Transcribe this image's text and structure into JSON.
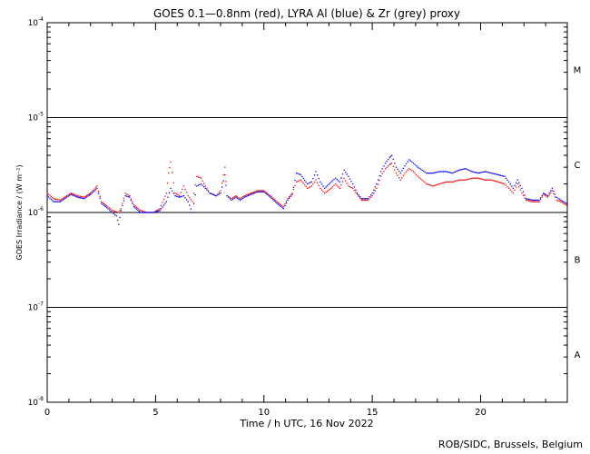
{
  "chart_data": {
    "type": "line",
    "title": "GOES 0.1—0.8nm (red), LYRA Al (blue) & Zr (grey) proxy",
    "xlabel": "Time / h UTC, 16 Nov 2022",
    "ylabel": "GOES Irradiance / (W m⁻²)",
    "xlim": [
      0,
      24
    ],
    "ylim": [
      1e-08,
      0.0001
    ],
    "y_scale": "log",
    "x_ticks": [
      0,
      5,
      10,
      15,
      20
    ],
    "y_ticks": [
      {
        "value": 1e-08,
        "base": "10",
        "exp": "-8"
      },
      {
        "value": 1e-07,
        "base": "10",
        "exp": "-7"
      },
      {
        "value": 1e-06,
        "base": "10",
        "exp": "-6"
      },
      {
        "value": 1e-05,
        "base": "10",
        "exp": "-5"
      },
      {
        "value": 0.0001,
        "base": "10",
        "exp": "-4"
      }
    ],
    "flare_class_lines": [
      1e-07,
      1e-06,
      1e-05
    ],
    "flare_classes": [
      {
        "label": "A",
        "y": 3.2e-08
      },
      {
        "label": "B",
        "y": 3.2e-07
      },
      {
        "label": "C",
        "y": 3.2e-06
      },
      {
        "label": "M",
        "y": 3.2e-05
      }
    ],
    "series": [
      {
        "color": "#ff0000",
        "x": [
          0,
          0.3,
          0.6,
          0.9,
          1.1,
          1.4,
          1.7,
          2.0,
          2.3,
          2.5,
          2.8,
          3.0,
          3.3,
          3.4,
          3.6,
          3.8,
          4.0,
          4.3,
          4.6,
          4.9,
          5.2,
          5.5,
          5.6,
          5.7,
          5.9,
          6.1,
          6.3,
          6.5,
          6.7,
          6.9,
          7.1,
          7.3,
          7.5,
          7.8,
          8.0,
          8.2,
          8.3,
          8.5,
          8.7,
          8.9,
          9.1,
          9.4,
          9.7,
          10.0,
          10.3,
          10.6,
          10.9,
          11.1,
          11.3,
          11.5,
          11.7,
          12.0,
          12.2,
          12.4,
          12.6,
          12.8,
          13.1,
          13.3,
          13.5,
          13.7,
          13.9,
          14.1,
          14.3,
          14.5,
          14.8,
          15.0,
          15.2,
          15.4,
          15.6,
          15.8,
          15.9,
          16.1,
          16.3,
          16.5,
          16.7,
          16.9,
          17.1,
          17.3,
          17.5,
          17.8,
          18.1,
          18.4,
          18.7,
          19.0,
          19.3,
          19.6,
          19.9,
          20.2,
          20.5,
          20.8,
          21.1,
          21.3,
          21.5,
          21.7,
          21.9,
          22.1,
          22.4,
          22.7,
          22.9,
          23.1,
          23.3,
          23.5,
          23.7,
          23.95
        ],
        "y": [
          1.6e-06,
          1.4e-06,
          1.35e-06,
          1.5e-06,
          1.6e-06,
          1.5e-06,
          1.45e-06,
          1.6e-06,
          1.9e-06,
          1.3e-06,
          1.15e-06,
          1.05e-06,
          1e-06,
          1.1e-06,
          1.6e-06,
          1.5e-06,
          1.2e-06,
          1.05e-06,
          1e-06,
          1e-06,
          1.1e-06,
          1.6e-06,
          2.6e-06,
          3.4e-06,
          1.6e-06,
          1.5e-06,
          1.9e-06,
          1.5e-06,
          1.3e-06,
          2.4e-06,
          2.3e-06,
          1.9e-06,
          1.6e-06,
          1.5e-06,
          1.7e-06,
          3e-06,
          1.5e-06,
          1.4e-06,
          1.5e-06,
          1.4e-06,
          1.5e-06,
          1.6e-06,
          1.7e-06,
          1.7e-06,
          1.5e-06,
          1.3e-06,
          1.15e-06,
          1.4e-06,
          1.6e-06,
          2.1e-06,
          2.2e-06,
          1.8e-06,
          1.9e-06,
          2.2e-06,
          1.8e-06,
          1.6e-06,
          1.8e-06,
          2e-06,
          1.8e-06,
          2.3e-06,
          1.9e-06,
          1.8e-06,
          1.55e-06,
          1.35e-06,
          1.35e-06,
          1.5e-06,
          1.8e-06,
          2.4e-06,
          2.9e-06,
          3.2e-06,
          3.3e-06,
          2.6e-06,
          2.2e-06,
          2.6e-06,
          2.9e-06,
          2.7e-06,
          2.4e-06,
          2.2e-06,
          2e-06,
          1.9e-06,
          2e-06,
          2.1e-06,
          2.1e-06,
          2.2e-06,
          2.2e-06,
          2.3e-06,
          2.3e-06,
          2.2e-06,
          2.2e-06,
          2.1e-06,
          2e-06,
          1.8e-06,
          1.6e-06,
          2e-06,
          1.6e-06,
          1.35e-06,
          1.3e-06,
          1.3e-06,
          1.55e-06,
          1.45e-06,
          1.7e-06,
          1.35e-06,
          1.3e-06,
          1.2e-06
        ]
      },
      {
        "color": "#0000ff",
        "x": [
          0,
          0.3,
          0.6,
          0.9,
          1.1,
          1.4,
          1.7,
          2.0,
          2.3,
          2.5,
          2.8,
          3.0,
          3.2,
          3.3,
          3.4,
          3.6,
          3.8,
          4.0,
          4.3,
          4.6,
          4.9,
          5.2,
          5.5,
          5.7,
          5.9,
          6.1,
          6.3,
          6.5,
          6.7,
          6.9,
          7.1,
          7.3,
          7.5,
          7.8,
          8.0,
          8.2,
          8.3,
          8.5,
          8.7,
          8.9,
          9.1,
          9.4,
          9.7,
          10.0,
          10.3,
          10.6,
          10.9,
          11.1,
          11.3,
          11.5,
          11.7,
          12.0,
          12.2,
          12.4,
          12.6,
          12.8,
          13.1,
          13.3,
          13.5,
          13.7,
          13.9,
          14.1,
          14.3,
          14.5,
          14.8,
          15.0,
          15.2,
          15.4,
          15.6,
          15.8,
          15.9,
          16.1,
          16.3,
          16.5,
          16.7,
          16.9,
          17.1,
          17.3,
          17.5,
          17.8,
          18.1,
          18.4,
          18.7,
          19.0,
          19.3,
          19.6,
          19.9,
          20.2,
          20.5,
          20.8,
          21.1,
          21.3,
          21.5,
          21.7,
          21.9,
          22.1,
          22.4,
          22.7,
          22.9,
          23.1,
          23.3,
          23.5,
          23.7,
          23.95
        ],
        "y": [
          1.5e-06,
          1.3e-06,
          1.3e-06,
          1.45e-06,
          1.55e-06,
          1.45e-06,
          1.4e-06,
          1.55e-06,
          1.8e-06,
          1.25e-06,
          1.1e-06,
          1e-06,
          9.2e-07,
          7.5e-07,
          1.05e-06,
          1.5e-06,
          1.45e-06,
          1.15e-06,
          1e-06,
          1e-06,
          1e-06,
          1.05e-06,
          1.3e-06,
          1.8e-06,
          1.5e-06,
          1.45e-06,
          1.5e-06,
          1.3e-06,
          1e-06,
          1.9e-06,
          2e-06,
          1.8e-06,
          1.6e-06,
          1.5e-06,
          1.6e-06,
          2.5e-06,
          1.5e-06,
          1.35e-06,
          1.45e-06,
          1.35e-06,
          1.45e-06,
          1.55e-06,
          1.65e-06,
          1.65e-06,
          1.45e-06,
          1.25e-06,
          1.1e-06,
          1.35e-06,
          1.55e-06,
          2.6e-06,
          2.5e-06,
          2e-06,
          2.1e-06,
          2.7e-06,
          2.1e-06,
          1.8e-06,
          2.1e-06,
          2.3e-06,
          2.1e-06,
          2.8e-06,
          2.4e-06,
          2e-06,
          1.6e-06,
          1.4e-06,
          1.4e-06,
          1.6e-06,
          2e-06,
          2.7e-06,
          3.3e-06,
          3.8e-06,
          4e-06,
          3e-06,
          2.6e-06,
          3.1e-06,
          3.6e-06,
          3.3e-06,
          3e-06,
          2.8e-06,
          2.6e-06,
          2.6e-06,
          2.7e-06,
          2.7e-06,
          2.6e-06,
          2.8e-06,
          2.9e-06,
          2.7e-06,
          2.6e-06,
          2.7e-06,
          2.6e-06,
          2.5e-06,
          2.4e-06,
          2.1e-06,
          1.8e-06,
          2.2e-06,
          1.8e-06,
          1.4e-06,
          1.35e-06,
          1.35e-06,
          1.6e-06,
          1.5e-06,
          1.8e-06,
          1.45e-06,
          1.35e-06,
          1.25e-06
        ]
      }
    ]
  },
  "footer": {
    "credit": "ROB/SIDC, Brussels, Belgium"
  }
}
